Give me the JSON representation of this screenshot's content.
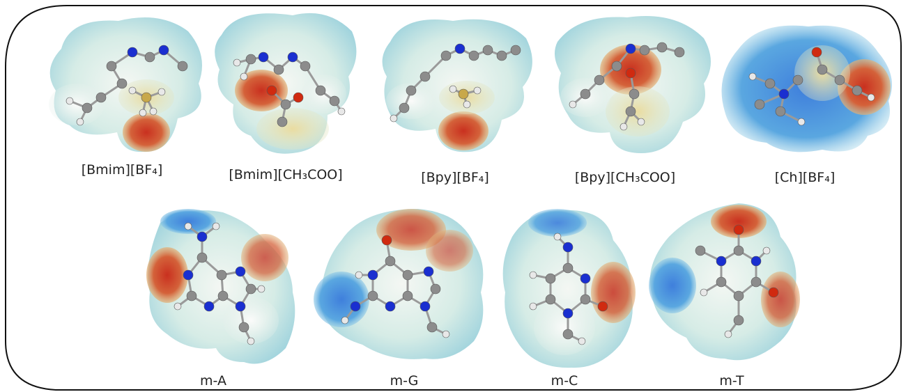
{
  "ionic_liquids": [
    {
      "label": "[Bmim][BF₄]",
      "anion_color": "#c8382a",
      "atoms_hint": "imidazolium"
    },
    {
      "label": "[Bmim][CH₃COO]",
      "anion_color": "#d2412f",
      "atoms_hint": "imidazolium"
    },
    {
      "label": "[Bpy][BF₄]",
      "anion_color": "#c8382a",
      "atoms_hint": "pyridinium"
    },
    {
      "label": "[Bpy][CH₃COO]",
      "anion_color": "#d84a30",
      "atoms_hint": "pyridinium"
    },
    {
      "label": "[Ch][BF₄]",
      "anion_color": "#c84a2a",
      "atoms_hint": "choline"
    }
  ],
  "bases": [
    {
      "label": "m-A"
    },
    {
      "label": "m-G"
    },
    {
      "label": "m-C"
    },
    {
      "label": "m-T"
    }
  ],
  "colors": {
    "positive": "#2a6fd6",
    "neutral": "#d9ece8",
    "negative": "#c8372a",
    "carbon": "#8c8c8c",
    "nitrogen": "#1a2fd0",
    "oxygen": "#d02a10",
    "hydrogen": "#e8e8e8",
    "boron": "#c8a84a"
  }
}
